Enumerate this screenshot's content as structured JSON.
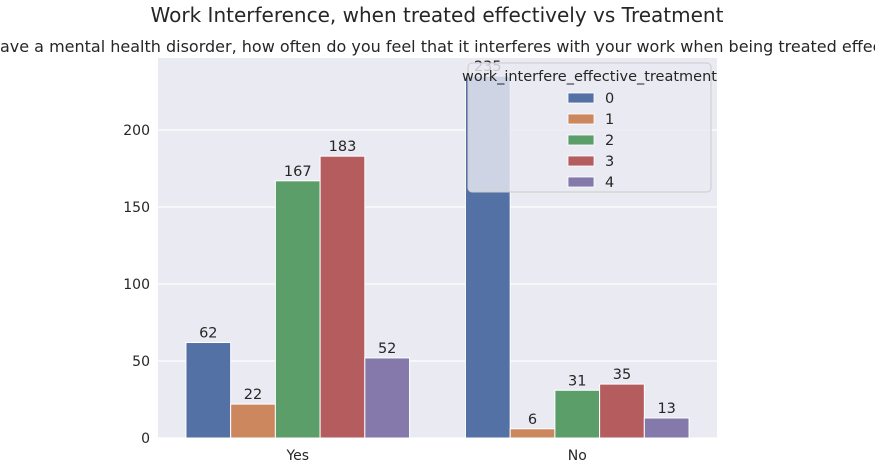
{
  "chart_data": {
    "type": "bar",
    "title": "Work Interference, when treated effectively vs Treatment",
    "subtitle": "if you have a mental health disorder, how often do you feel that it interferes with your work when being treated effectively?",
    "xlabel": "",
    "ylabel": "",
    "categories": [
      "Yes",
      "No"
    ],
    "series": [
      {
        "name": "0",
        "color": "#5471a6",
        "values": [
          62,
          235
        ]
      },
      {
        "name": "1",
        "color": "#cd875e",
        "values": [
          22,
          6
        ]
      },
      {
        "name": "2",
        "color": "#5b9e6a",
        "values": [
          167,
          31
        ]
      },
      {
        "name": "3",
        "color": "#b45c5e",
        "values": [
          183,
          35
        ]
      },
      {
        "name": "4",
        "color": "#8579ab",
        "values": [
          52,
          13
        ]
      }
    ],
    "y_ticks": [
      0,
      50,
      100,
      150,
      200
    ],
    "ylim": [
      0,
      246.75
    ],
    "grid": true,
    "background_color": "#eaeaf2",
    "legend": {
      "title": "work_interfere_effective_treatment",
      "placement": "top-right"
    }
  }
}
